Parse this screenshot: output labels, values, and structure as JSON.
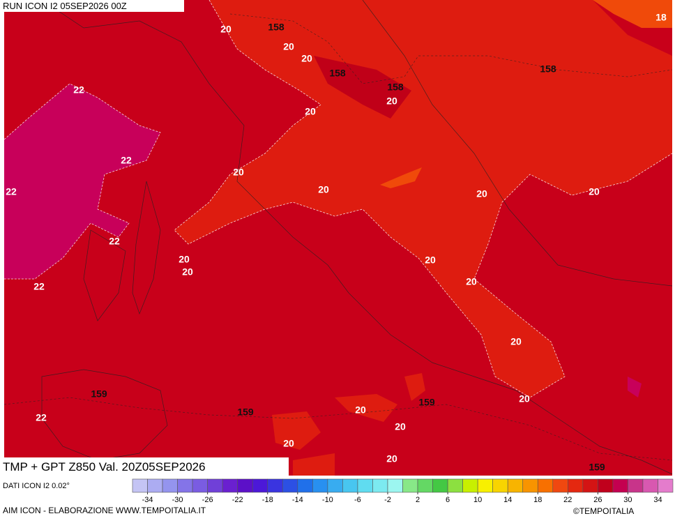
{
  "header": {
    "run": "RUN ICON I2 05SEP2026 00Z"
  },
  "map": {
    "contour_labels": [
      20,
      158,
      20,
      20,
      158,
      158,
      20,
      158,
      18,
      22,
      20,
      22,
      20,
      22,
      20,
      20,
      20,
      22,
      20,
      20,
      20,
      22,
      20,
      20,
      159,
      20,
      159,
      20,
      22,
      159,
      20,
      20,
      20,
      159
    ]
  },
  "footer": {
    "title": "TMP + GPT Z850 Val. 20Z05SEP2026",
    "source": "DATI ICON I2 0.02°",
    "credit": "AIM ICON - ELABORAZIONE WWW.TEMPOITALIA.IT",
    "copyright": "©TEMPOITALIA"
  },
  "colorbar": {
    "range": [
      -36,
      36
    ],
    "ticks": [
      -34,
      -30,
      -26,
      -22,
      -18,
      -14,
      -10,
      -6,
      -2,
      2,
      6,
      10,
      14,
      18,
      22,
      26,
      30,
      34
    ],
    "colors": [
      "#c4c4f4",
      "#acacf2",
      "#9494ee",
      "#8474e8",
      "#7a5ce2",
      "#7040d8",
      "#6a20d0",
      "#5c10c8",
      "#4c18d8",
      "#3a34e0",
      "#2c50e4",
      "#2070ea",
      "#2890f0",
      "#38acf0",
      "#48c6f0",
      "#60dcf0",
      "#7ceaf0",
      "#9cf6f0",
      "#88e888",
      "#64d864",
      "#44c844",
      "#8ce040",
      "#c8f000",
      "#f8f000",
      "#f8d400",
      "#f8b400",
      "#f89400",
      "#f87000",
      "#f04810",
      "#e42810",
      "#d41414",
      "#c0001c",
      "#c40050",
      "#c8348a",
      "#d858b0",
      "#e47ccc"
    ]
  }
}
